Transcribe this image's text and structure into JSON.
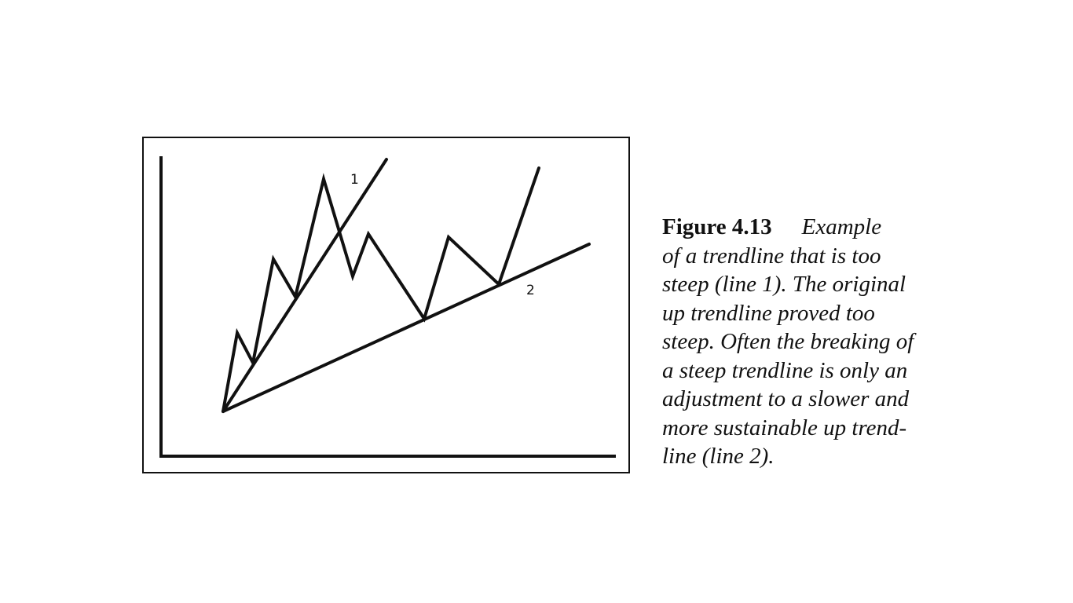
{
  "figure": {
    "line1_label": "1",
    "line2_label": "2",
    "stroke_color": "#111111"
  },
  "caption": {
    "label": "Figure 4.13",
    "lines": [
      "Example",
      "of a trendline that is too",
      "steep (line 1). The original",
      "up trendline proved too",
      "steep. Often the breaking of",
      "a steep trendline is only an",
      "adjustment to a slower and",
      "more sustainable up trend-",
      "line (line 2)."
    ]
  }
}
